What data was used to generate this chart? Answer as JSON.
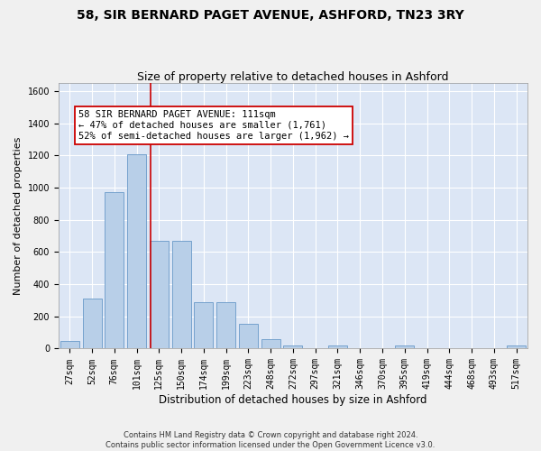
{
  "title": "58, SIR BERNARD PAGET AVENUE, ASHFORD, TN23 3RY",
  "subtitle": "Size of property relative to detached houses in Ashford",
  "xlabel": "Distribution of detached houses by size in Ashford",
  "ylabel": "Number of detached properties",
  "footer_line1": "Contains HM Land Registry data © Crown copyright and database right 2024.",
  "footer_line2": "Contains public sector information licensed under the Open Government Licence v3.0.",
  "bar_labels": [
    "27sqm",
    "52sqm",
    "76sqm",
    "101sqm",
    "125sqm",
    "150sqm",
    "174sqm",
    "199sqm",
    "223sqm",
    "248sqm",
    "272sqm",
    "297sqm",
    "321sqm",
    "346sqm",
    "370sqm",
    "395sqm",
    "419sqm",
    "444sqm",
    "468sqm",
    "493sqm",
    "517sqm"
  ],
  "bar_values": [
    50,
    310,
    970,
    1210,
    670,
    670,
    290,
    290,
    155,
    60,
    20,
    5,
    20,
    5,
    5,
    20,
    5,
    5,
    5,
    5,
    20
  ],
  "bar_color": "#b8cfe8",
  "bar_edgecolor": "#6899c8",
  "bg_color": "#dce6f5",
  "grid_color": "#ffffff",
  "fig_bg_color": "#f0f0f0",
  "ylim": [
    0,
    1650
  ],
  "yticks": [
    0,
    200,
    400,
    600,
    800,
    1000,
    1200,
    1400,
    1600
  ],
  "vline_x": 3.62,
  "vline_color": "#cc0000",
  "annotation_text": "58 SIR BERNARD PAGET AVENUE: 111sqm\n← 47% of detached houses are smaller (1,761)\n52% of semi-detached houses are larger (1,962) →",
  "annotation_boxcolor": "#ffffff",
  "annotation_edgecolor": "#cc0000",
  "title_fontsize": 10,
  "subtitle_fontsize": 9,
  "annotation_fontsize": 7.5,
  "xlabel_fontsize": 8.5,
  "ylabel_fontsize": 8,
  "tick_fontsize": 7,
  "footer_fontsize": 6
}
